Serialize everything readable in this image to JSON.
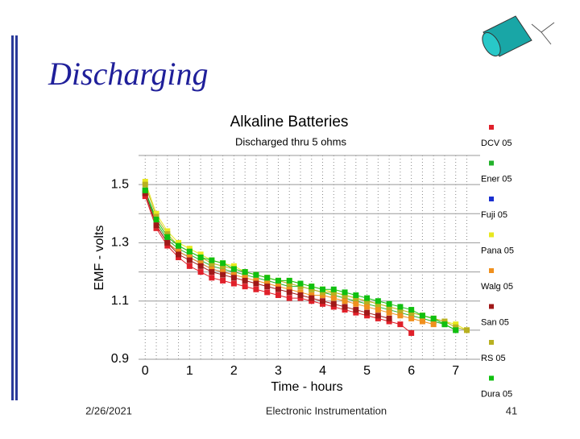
{
  "slide": {
    "title": "Discharging",
    "date": "2/26/2021",
    "course": "Electronic Instrumentation",
    "page": "41"
  },
  "chart_data": {
    "type": "line",
    "title": "Alkaline Batteries",
    "subtitle": "Discharged thru 5 ohms",
    "x_label": "Time - hours",
    "y_label": "EMF - volts",
    "x": [
      0,
      0.25,
      0.5,
      0.75,
      1,
      1.25,
      1.5,
      1.75,
      2,
      2.25,
      2.5,
      2.75,
      3,
      3.25,
      3.5,
      3.75,
      4,
      4.25,
      4.5,
      4.75,
      5,
      5.25,
      5.5,
      5.75,
      6,
      6.25,
      6.5,
      6.75,
      7,
      7.25
    ],
    "xlim": [
      -0.15,
      7.55
    ],
    "xticks": [
      0,
      1,
      2,
      3,
      4,
      5,
      6,
      7
    ],
    "ylim": [
      0.9,
      1.6
    ],
    "yticks": [
      0.9,
      1.1,
      1.3,
      1.5
    ],
    "ygrid": [
      0.9,
      1.0,
      1.1,
      1.2,
      1.3,
      1.4,
      1.5,
      1.6
    ],
    "legend": "right",
    "series": [
      {
        "name": "DCV 05",
        "color": "#e0202a",
        "values": [
          1.46,
          1.35,
          1.29,
          1.25,
          1.22,
          1.2,
          1.18,
          1.17,
          1.16,
          1.15,
          1.14,
          1.13,
          1.12,
          1.11,
          1.11,
          1.1,
          1.09,
          1.08,
          1.07,
          1.06,
          1.05,
          1.04,
          1.03,
          1.02,
          0.99,
          null,
          null,
          null,
          null,
          null
        ]
      },
      {
        "name": "Ener 05",
        "color": "#22b22a",
        "values": [
          1.48,
          1.37,
          1.31,
          1.28,
          1.26,
          1.24,
          1.22,
          1.21,
          1.2,
          1.19,
          1.18,
          1.17,
          1.16,
          1.15,
          1.15,
          1.14,
          1.13,
          1.12,
          1.11,
          1.1,
          1.09,
          1.08,
          1.07,
          1.06,
          1.05,
          1.04,
          1.03,
          1.02,
          1.0,
          null
        ]
      },
      {
        "name": "Fuji 05",
        "color": "#1a2fd0",
        "values": [
          1.47,
          1.36,
          1.3,
          1.27,
          1.25,
          1.23,
          1.21,
          1.2,
          1.19,
          null,
          null,
          null,
          null,
          null,
          null,
          null,
          null,
          null,
          null,
          null,
          null,
          null,
          null,
          null,
          null,
          null,
          null,
          null,
          null,
          null
        ]
      },
      {
        "name": "Pana 05",
        "color": "#e8e820",
        "values": [
          1.51,
          1.4,
          1.34,
          1.3,
          1.28,
          1.26,
          1.24,
          1.23,
          1.22,
          1.2,
          1.19,
          1.18,
          1.17,
          1.17,
          1.16,
          1.15,
          1.14,
          1.13,
          1.12,
          1.11,
          1.1,
          1.09,
          1.08,
          1.07,
          1.06,
          1.05,
          1.04,
          1.03,
          1.02,
          1.0
        ]
      },
      {
        "name": "Walg 05",
        "color": "#f0901e",
        "values": [
          1.47,
          1.36,
          1.3,
          1.27,
          1.25,
          1.23,
          1.21,
          1.2,
          1.19,
          1.18,
          1.17,
          1.16,
          1.15,
          1.14,
          1.13,
          1.12,
          1.12,
          1.11,
          1.1,
          1.09,
          1.08,
          1.07,
          1.06,
          1.05,
          1.04,
          1.03,
          1.02,
          null,
          null,
          null
        ]
      },
      {
        "name": "San 05",
        "color": "#a01818",
        "values": [
          1.47,
          1.36,
          1.3,
          1.26,
          1.24,
          1.22,
          1.2,
          1.19,
          1.18,
          1.17,
          1.16,
          1.15,
          1.14,
          1.13,
          1.12,
          1.11,
          1.1,
          1.09,
          1.08,
          1.07,
          1.06,
          1.05,
          1.04,
          null,
          null,
          null,
          null,
          null,
          null,
          null
        ]
      },
      {
        "name": "RS 05",
        "color": "#b8b020",
        "values": [
          1.5,
          1.39,
          1.33,
          1.29,
          1.27,
          1.25,
          1.23,
          1.22,
          1.21,
          1.2,
          1.19,
          1.18,
          1.17,
          1.16,
          1.15,
          1.14,
          1.13,
          1.13,
          1.12,
          1.11,
          1.1,
          1.09,
          1.08,
          1.07,
          1.06,
          1.05,
          1.04,
          1.03,
          1.01,
          1.0
        ]
      },
      {
        "name": "Dura 05",
        "color": "#10c010",
        "values": [
          1.48,
          1.38,
          1.32,
          1.29,
          1.27,
          1.25,
          1.24,
          1.23,
          1.21,
          1.2,
          1.19,
          1.18,
          1.17,
          1.17,
          1.16,
          1.15,
          1.14,
          1.14,
          1.13,
          1.12,
          1.11,
          1.1,
          1.09,
          1.08,
          1.07,
          1.05,
          1.04,
          1.02,
          1.0,
          null
        ]
      }
    ]
  }
}
